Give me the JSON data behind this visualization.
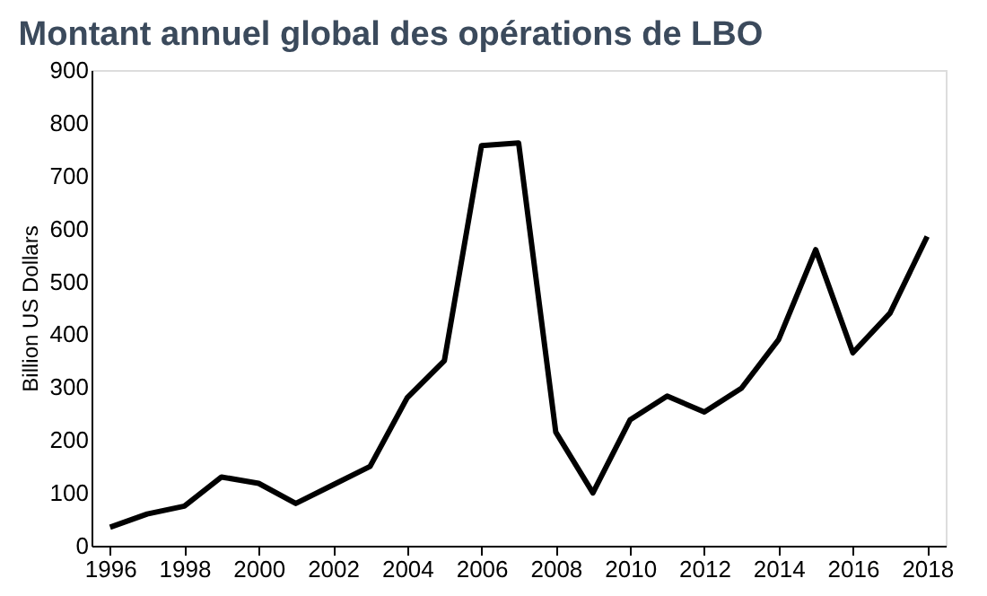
{
  "chart_data": {
    "type": "line",
    "title": "Montant annuel global des opérations de LBO",
    "ylabel": "Billion US Dollars",
    "x": [
      1996,
      1997,
      1998,
      1999,
      2000,
      2001,
      2002,
      2003,
      2004,
      2005,
      2006,
      2007,
      2008,
      2009,
      2010,
      2011,
      2012,
      2013,
      2014,
      2015,
      2016,
      2017,
      2018
    ],
    "series": [
      {
        "color": "#000000",
        "values": [
          35,
          60,
          75,
          130,
          118,
          80,
          115,
          150,
          280,
          350,
          757,
          762,
          215,
          100,
          238,
          283,
          253,
          298,
          390,
          560,
          365,
          440,
          585
        ]
      }
    ],
    "xlim": [
      1995.5,
      2018.5
    ],
    "xticks": [
      1996,
      1998,
      2000,
      2002,
      2004,
      2006,
      2008,
      2010,
      2012,
      2014,
      2016,
      2018
    ],
    "ylim": [
      0,
      900
    ],
    "yticks": [
      0,
      100,
      200,
      300,
      400,
      500,
      600,
      700,
      800,
      900
    ],
    "grid": false,
    "legend": false,
    "marker": "none",
    "line_style": "solid"
  }
}
